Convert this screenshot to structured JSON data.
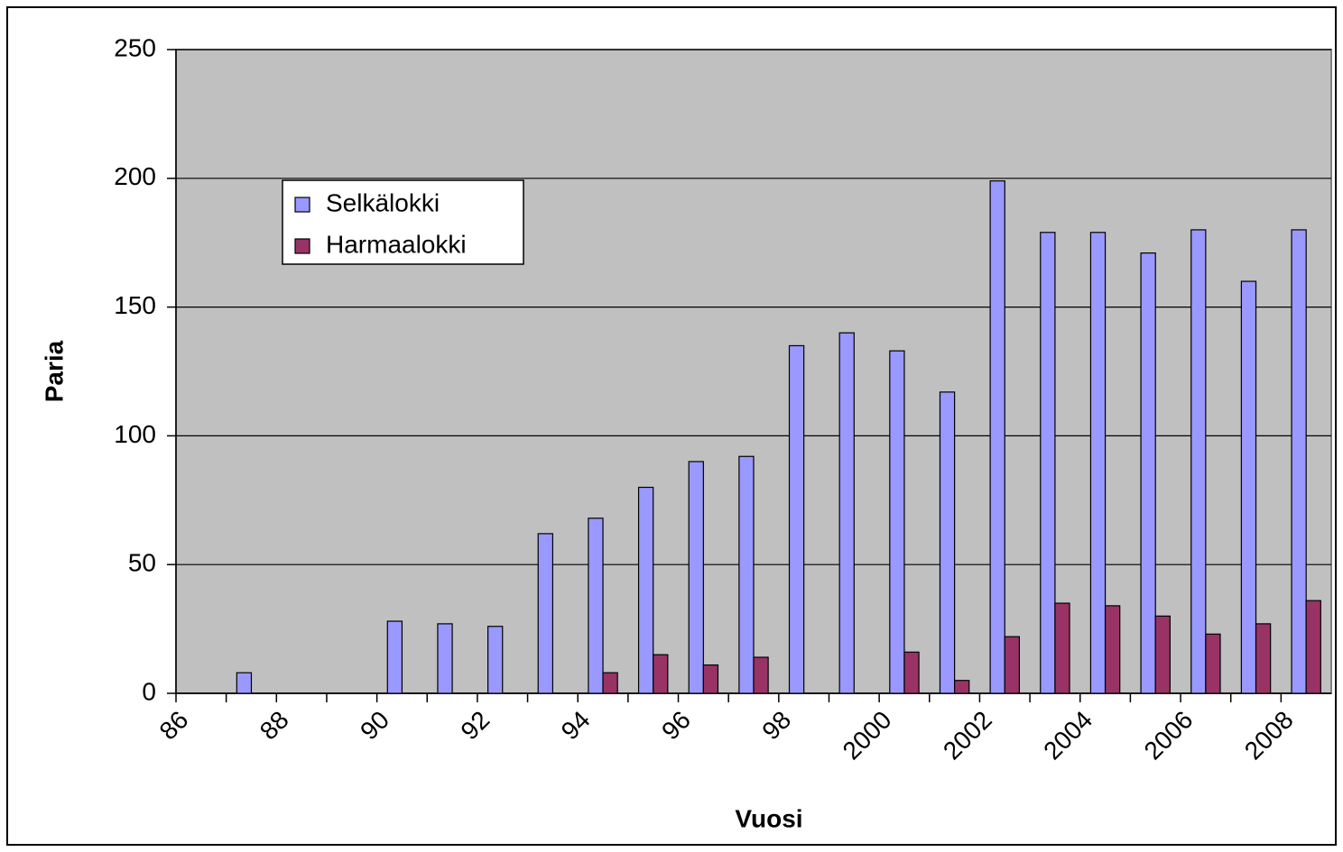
{
  "chart_data": {
    "type": "bar",
    "x_label": "Vuosi",
    "y_label": "Paria",
    "categories": [
      "86",
      null,
      "88",
      null,
      "90",
      null,
      "92",
      null,
      "94",
      null,
      "96",
      null,
      "98",
      null,
      "2000",
      null,
      "2002",
      null,
      "2004",
      null,
      "2006",
      null,
      "2008"
    ],
    "series": [
      {
        "name": "Selkälokki",
        "color": "#9999ff",
        "values": [
          null,
          8,
          null,
          null,
          28,
          27,
          26,
          62,
          68,
          80,
          90,
          92,
          135,
          140,
          133,
          117,
          199,
          179,
          179,
          171,
          180,
          160,
          180
        ]
      },
      {
        "name": "Harmaalokki",
        "color": "#993366",
        "values": [
          null,
          null,
          null,
          null,
          null,
          null,
          null,
          null,
          8,
          15,
          11,
          14,
          null,
          null,
          16,
          5,
          22,
          35,
          34,
          30,
          23,
          27,
          36
        ]
      }
    ],
    "ylim": [
      0,
      250
    ],
    "yticks": [
      0,
      50,
      100,
      150,
      200,
      250
    ],
    "grid": true,
    "plot_background": "#c0c0c0"
  }
}
